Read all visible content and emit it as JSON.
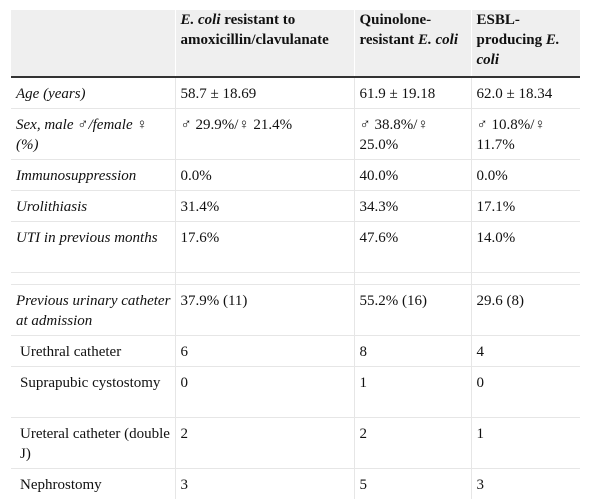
{
  "table": {
    "header": {
      "col1": "",
      "col2_italic": "E. coli",
      "col2_rest": " resistant to amoxicillin/clavulanate",
      "col3_prefix": "Quinolone-resistant ",
      "col3_italic": "E. coli",
      "col4_prefix": "ESBL-producing ",
      "col4_italic": "E. coli"
    },
    "rows": [
      {
        "label": "Age (years)",
        "v1": "58.7 ± 18.69",
        "v2": "61.9 ± 19.18",
        "v3": "62.0 ± 18.34"
      },
      {
        "label": "Sex, male ♂/female ♀ (%)",
        "v1": "♂ 29.9%/♀ 21.4%",
        "v2": "♂ 38.8%/♀ 25.0%",
        "v3": "♂ 10.8%/♀ 11.7%"
      },
      {
        "label": "Immunosuppression",
        "v1": "0.0%",
        "v2": "40.0%",
        "v3": "0.0%"
      },
      {
        "label": "Urolithiasis",
        "v1": "31.4%",
        "v2": "34.3%",
        "v3": "17.1%"
      },
      {
        "label": "UTI in previous months",
        "v1": "17.6%",
        "v2": "47.6%",
        "v3": "14.0%"
      },
      {
        "label": "Previous urinary catheter at admission",
        "v1": "37.9% (11)",
        "v2": "55.2% (16)",
        "v3": "29.6 (8)"
      },
      {
        "label": "Urethral catheter",
        "v1": "6",
        "v2": "8",
        "v3": "4"
      },
      {
        "label": "Suprapubic cystostomy",
        "v1": "0",
        "v2": "1",
        "v3": "0"
      },
      {
        "label": "Ureteral catheter (double J)",
        "v1": "2",
        "v2": "2",
        "v3": "1"
      },
      {
        "label": "Nephrostomy",
        "v1": "3",
        "v2": "5",
        "v3": "3"
      }
    ]
  },
  "colors": {
    "header_background": "#efefef",
    "header_rule": "#333333",
    "row_divider": "#e6e6e6"
  }
}
